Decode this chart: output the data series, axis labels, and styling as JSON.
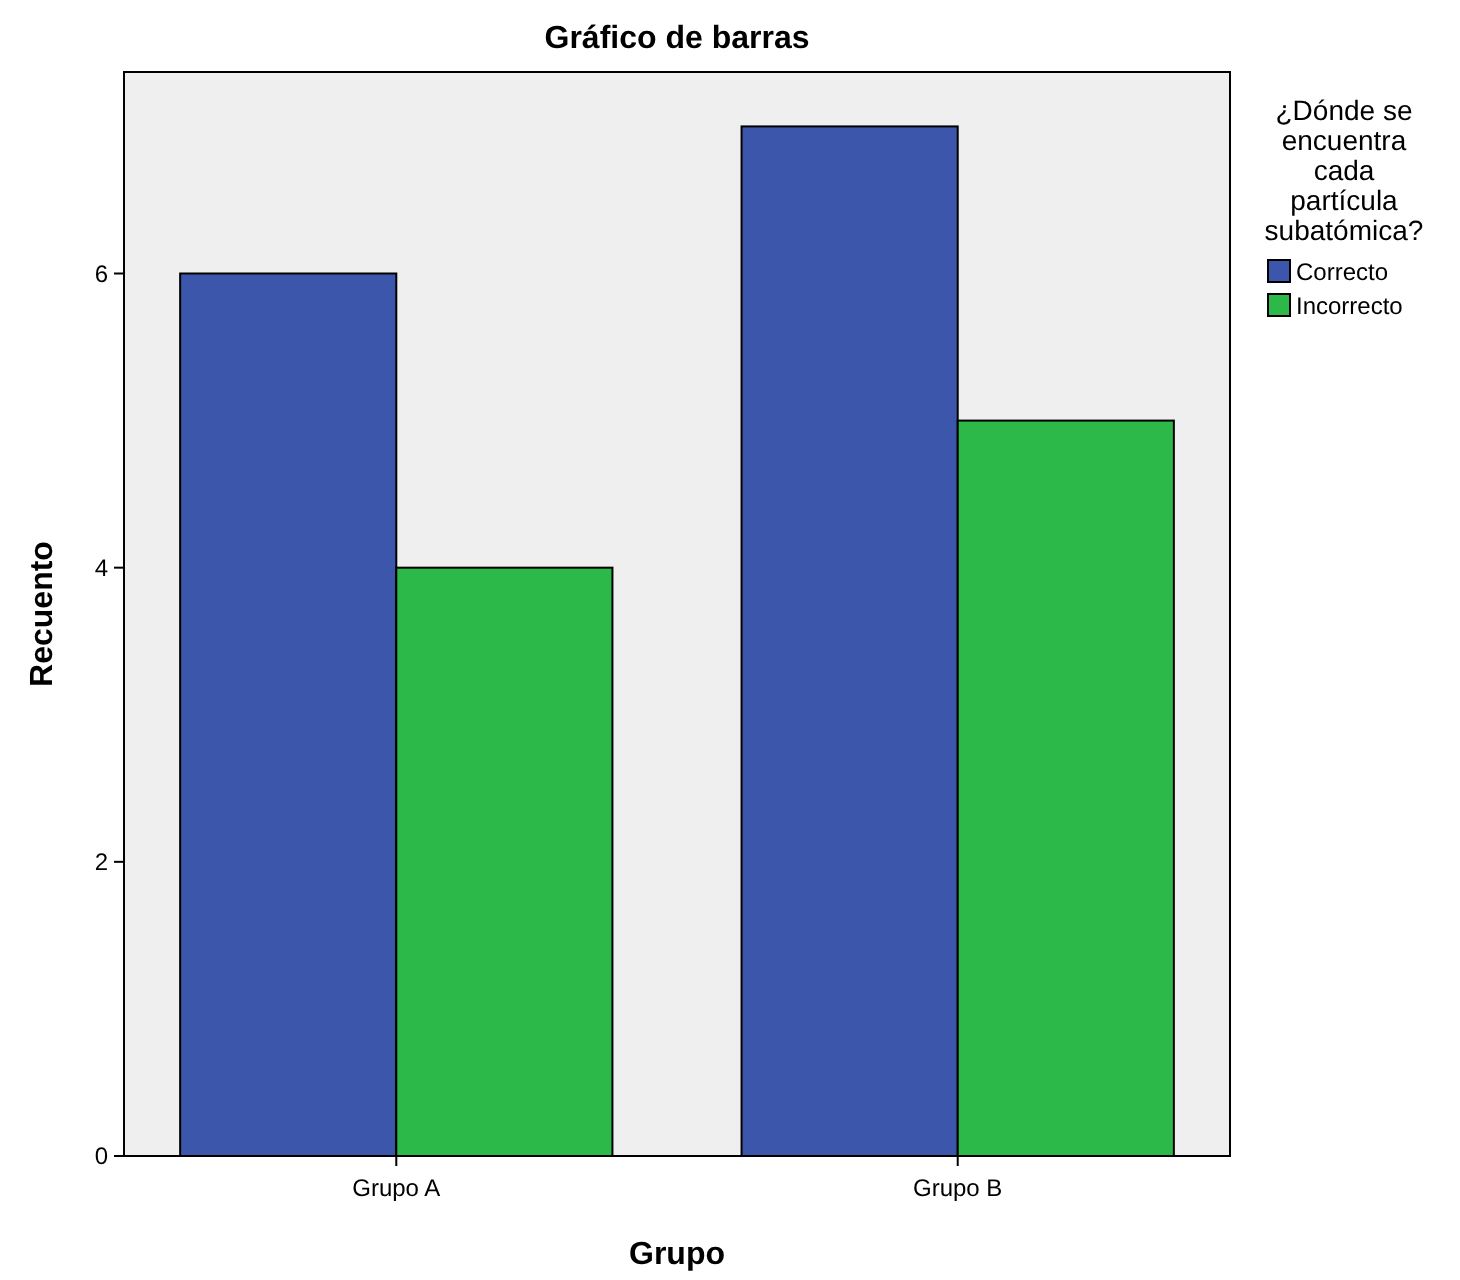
{
  "chart_data": {
    "type": "bar",
    "title": "Gráfico de barras",
    "xlabel": "Grupo",
    "ylabel": "Recuento",
    "legend_title": "¿Dónde se encuentra cada partícula subatómica?",
    "categories": [
      "Grupo A",
      "Grupo B"
    ],
    "series": [
      {
        "name": "Correcto",
        "color": "#3c56ac",
        "values": [
          6,
          7
        ]
      },
      {
        "name": "Incorrecto",
        "color": "#2db84a",
        "values": [
          4,
          5
        ]
      }
    ],
    "ylim": [
      0,
      7.37
    ],
    "yticks": [
      0,
      2,
      4,
      6
    ],
    "legend": "right"
  }
}
